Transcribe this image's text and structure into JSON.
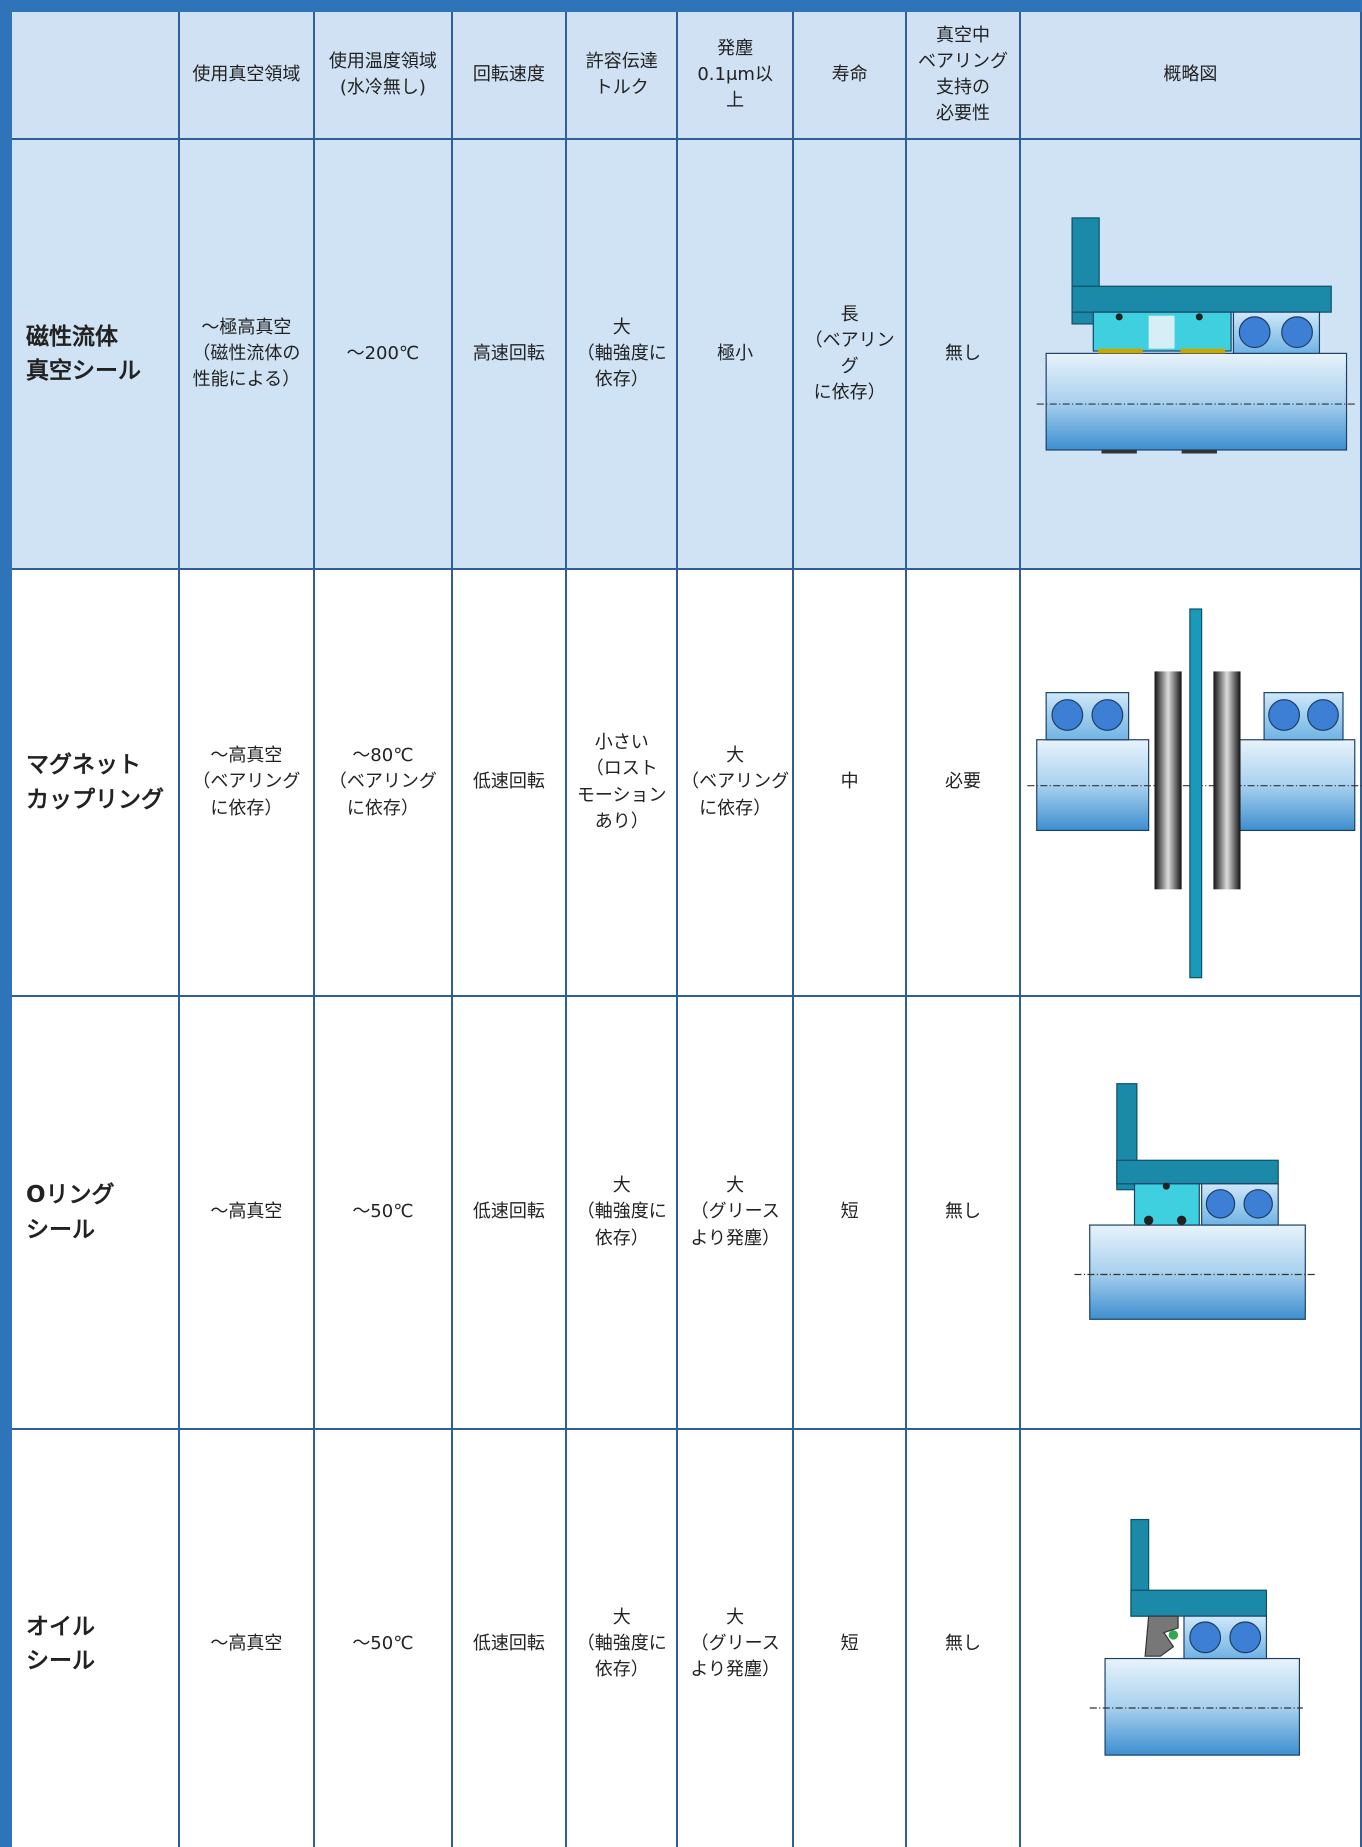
{
  "table": {
    "header": [
      "使用真空領域",
      "使用温度領域\n(水冷無し)",
      "回転速度",
      "許容伝達\nトルク",
      "発塵\n0.1μm以\n上",
      "寿命",
      "真空中\nベアリング\n支持の\n必要性",
      "概略図"
    ],
    "rows": [
      {
        "name": "磁性流体\n真空シール",
        "cells": [
          "～極高真空\n（磁性流体の\n性能による）",
          "～200℃",
          "高速回転",
          "大\n（軸強度に\n依存）",
          "極小",
          "長\n（ベアリング\nに依存）",
          "無し"
        ]
      },
      {
        "name": "マグネット\nカップリング",
        "cells": [
          "～高真空\n（ベアリング\nに依存）",
          "～80℃\n（ベアリング\nに依存）",
          "低速回転",
          "小さい\n（ロスト\nモーション\nあり）",
          "大\n（ベアリング\nに依存）",
          "中",
          "必要"
        ]
      },
      {
        "name": "Oリング\nシール",
        "cells": [
          "～高真空",
          "～50℃",
          "低速回転",
          "大\n（軸強度に\n依存）",
          "大\n（グリース\nより発塵）",
          "短",
          "無し"
        ]
      },
      {
        "name": "オイル\nシール",
        "cells": [
          "～高真空",
          "～50℃",
          "低速回転",
          "大\n（軸強度に\n依存）",
          "大\n（グリース\nより発塵）",
          "短",
          "無し"
        ]
      }
    ]
  }
}
